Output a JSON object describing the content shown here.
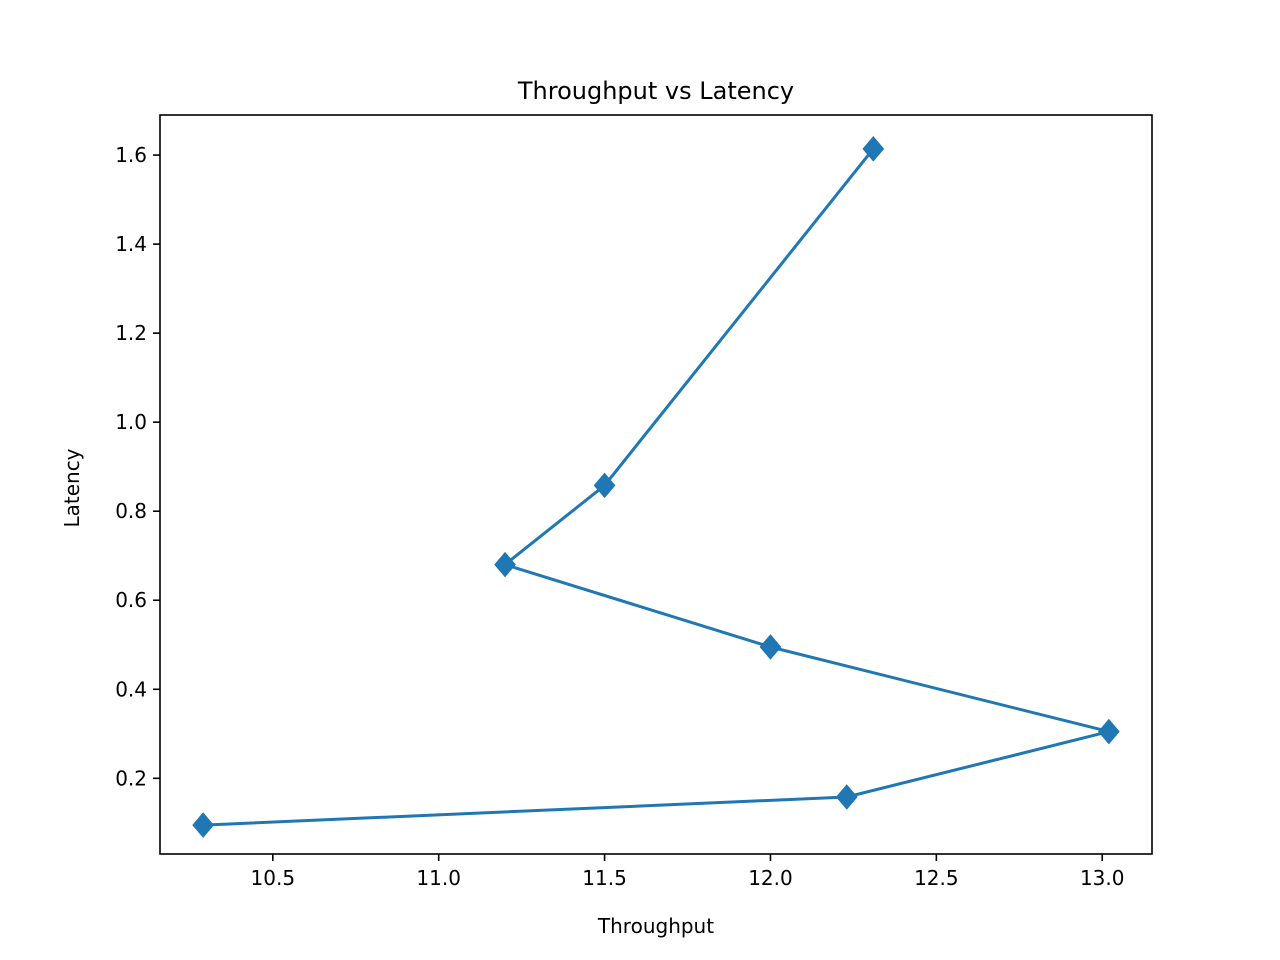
{
  "chart_data": {
    "type": "line",
    "title": "Throughput vs Latency",
    "xlabel": "Throughput",
    "ylabel": "Latency",
    "xlim": [
      10.16,
      13.15
    ],
    "ylim": [
      0.03,
      1.69
    ],
    "xticks": [
      10.5,
      11.0,
      11.5,
      12.0,
      12.5,
      13.0
    ],
    "xtick_labels": [
      "10.5",
      "11.0",
      "11.5",
      "12.0",
      "12.5",
      "13.0"
    ],
    "yticks": [
      0.2,
      0.4,
      0.6,
      0.8,
      1.0,
      1.2,
      1.4,
      1.6
    ],
    "ytick_labels": [
      "0.2",
      "0.4",
      "0.6",
      "0.8",
      "1.0",
      "1.2",
      "1.4",
      "1.6"
    ],
    "grid": false,
    "series": [
      {
        "marker": "diamond",
        "color": "#1f77b4",
        "points": [
          {
            "x": 10.29,
            "y": 0.095
          },
          {
            "x": 12.23,
            "y": 0.158
          },
          {
            "x": 13.02,
            "y": 0.305
          },
          {
            "x": 12.0,
            "y": 0.495
          },
          {
            "x": 11.2,
            "y": 0.68
          },
          {
            "x": 11.5,
            "y": 0.858
          },
          {
            "x": 12.31,
            "y": 1.614
          }
        ]
      }
    ]
  }
}
